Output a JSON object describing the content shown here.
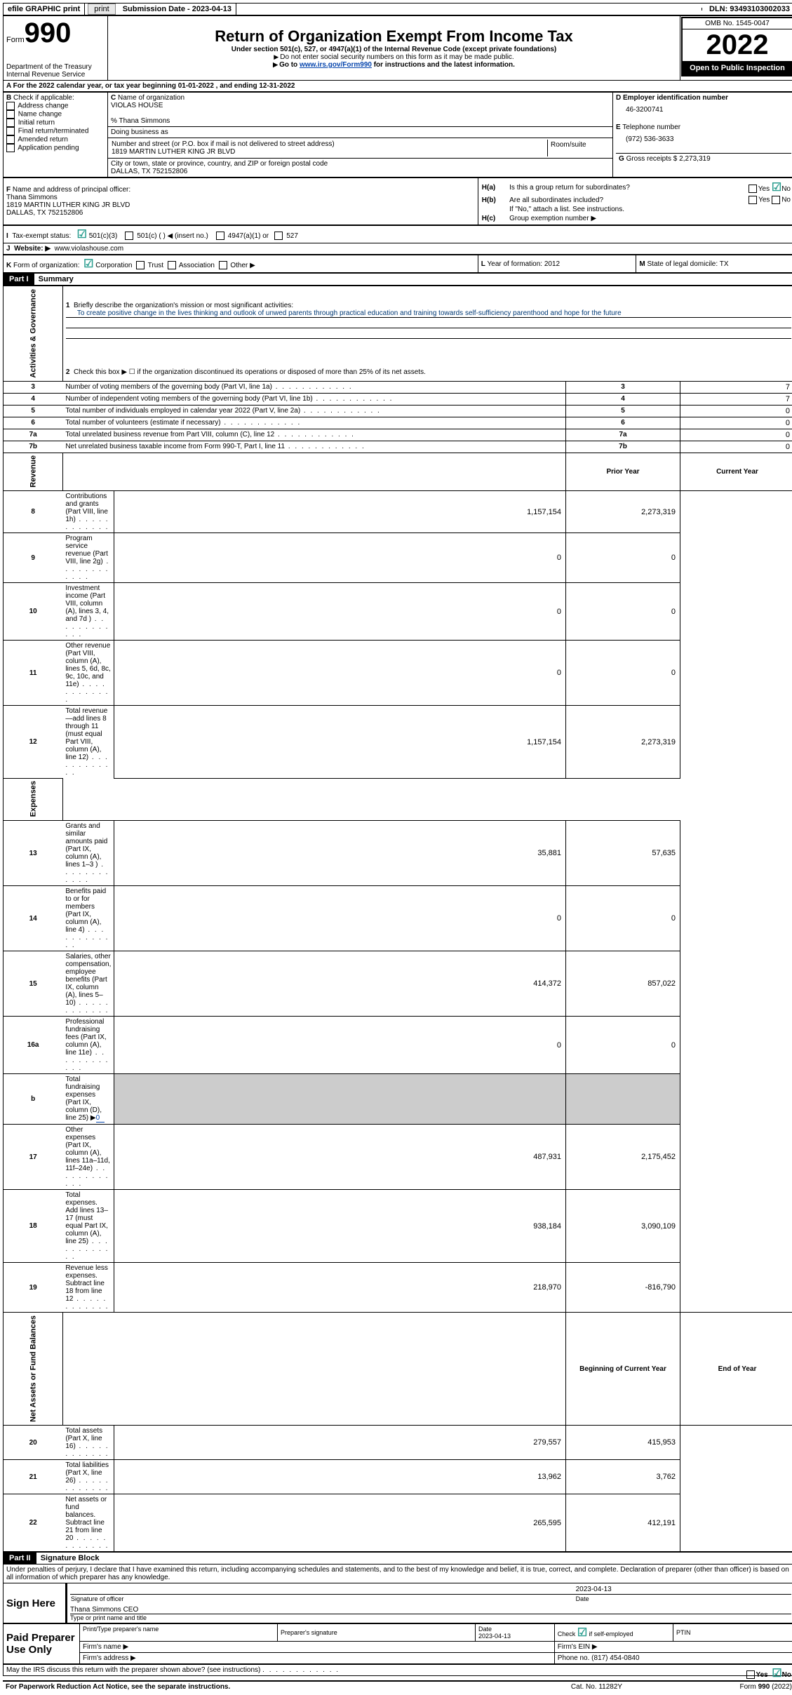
{
  "topbar": {
    "efile": "efile GRAPHIC print",
    "subdate_label": "Submission Date - ",
    "subdate": "2023-04-13",
    "dln_label": "DLN: ",
    "dln": "93493103002033"
  },
  "header": {
    "form_word": "Form",
    "form_no": "990",
    "dept": "Department of the Treasury\nInternal Revenue Service",
    "title": "Return of Organization Exempt From Income Tax",
    "sub1": "Under section 501(c), 527, or 4947(a)(1) of the Internal Revenue Code (except private foundations)",
    "sub2": "Do not enter social security numbers on this form as it may be made public.",
    "sub3_pre": "Go to ",
    "sub3_link": "www.irs.gov/Form990",
    "sub3_post": " for instructions and the latest information.",
    "omb": "OMB No. 1545-0047",
    "year": "2022",
    "open": "Open to Public Inspection"
  },
  "a_line": {
    "text_pre": "For the 2022 calendar year, or tax year beginning ",
    "begin": "01-01-2022",
    "mid": " , and ending ",
    "end": "12-31-2022"
  },
  "b": {
    "label": "Check if applicable:",
    "opts": [
      "Address change",
      "Name change",
      "Initial return",
      "Final return/terminated",
      "Amended return",
      "Application pending"
    ]
  },
  "c": {
    "name_lbl": "Name of organization",
    "name": "VIOLAS HOUSE",
    "care": "% Thana Simmons",
    "dba_lbl": "Doing business as",
    "addr_lbl": "Number and street (or P.O. box if mail is not delivered to street address)",
    "room_lbl": "Room/suite",
    "addr": "1819 MARTIN LUTHER KING JR BLVD",
    "city_lbl": "City or town, state or province, country, and ZIP or foreign postal code",
    "city": "DALLAS, TX  752152806"
  },
  "d": {
    "lbl": "Employer identification number",
    "val": "46-3200741"
  },
  "e": {
    "lbl": "Telephone number",
    "val": "(972) 536-3633"
  },
  "g": {
    "lbl": "Gross receipts $",
    "val": "2,273,319"
  },
  "f": {
    "lbl": "Name and address of principal officer:",
    "name": "Thana Simmons",
    "addr1": "1819 MARTIN LUTHER KING JR BLVD",
    "addr2": "DALLAS, TX  752152806"
  },
  "h": {
    "a": "Is this a group return for subordinates?",
    "b": "Are all subordinates included?",
    "b_note": "If \"No,\" attach a list. See instructions.",
    "c": "Group exemption number ▶"
  },
  "i": {
    "lbl": "Tax-exempt status:",
    "o1": "501(c)(3)",
    "o2": "501(c) (  ) ◀ (insert no.)",
    "o3": "4947(a)(1) or",
    "o4": "527"
  },
  "j": {
    "lbl": "Website: ▶",
    "val": "www.violashouse.com"
  },
  "k": {
    "lbl": "Form of organization:",
    "corp": "Corporation",
    "trust": "Trust",
    "assoc": "Association",
    "other": "Other ▶"
  },
  "l": {
    "lbl": "Year of formation: ",
    "val": "2012"
  },
  "m": {
    "lbl": "State of legal domicile: ",
    "val": "TX"
  },
  "p1": {
    "title": "Summary",
    "mission_lbl": "Briefly describe the organization's mission or most significant activities:",
    "mission": "To create positive change in the lives thinking and outlook of unwed parents through practical education and training towards self-sufficiency parenthood and hope for the future",
    "q2": "Check this box ▶ ☐ if the organization discontinued its operations or disposed of more than 25% of its net assets.",
    "side_ag": "Activities & Governance",
    "side_rev": "Revenue",
    "side_exp": "Expenses",
    "side_net": "Net Assets or Fund Balances",
    "rows_ag": [
      {
        "n": "3",
        "t": "Number of voting members of the governing body (Part VI, line 1a)",
        "v": "7"
      },
      {
        "n": "4",
        "t": "Number of independent voting members of the governing body (Part VI, line 1b)",
        "v": "7"
      },
      {
        "n": "5",
        "t": "Total number of individuals employed in calendar year 2022 (Part V, line 2a)",
        "v": "0"
      },
      {
        "n": "6",
        "t": "Total number of volunteers (estimate if necessary)",
        "v": "0"
      },
      {
        "n": "7a",
        "t": "Total unrelated business revenue from Part VIII, column (C), line 12",
        "v": "0"
      },
      {
        "n": "7b",
        "t": "Net unrelated business taxable income from Form 990-T, Part I, line 11",
        "v": "0"
      }
    ],
    "col_py": "Prior Year",
    "col_cy": "Current Year",
    "rows_rev": [
      {
        "n": "8",
        "t": "Contributions and grants (Part VIII, line 1h)",
        "py": "1,157,154",
        "cy": "2,273,319"
      },
      {
        "n": "9",
        "t": "Program service revenue (Part VIII, line 2g)",
        "py": "0",
        "cy": "0"
      },
      {
        "n": "10",
        "t": "Investment income (Part VIII, column (A), lines 3, 4, and 7d )",
        "py": "0",
        "cy": "0"
      },
      {
        "n": "11",
        "t": "Other revenue (Part VIII, column (A), lines 5, 6d, 8c, 9c, 10c, and 11e)",
        "py": "0",
        "cy": "0"
      },
      {
        "n": "12",
        "t": "Total revenue—add lines 8 through 11 (must equal Part VIII, column (A), line 12)",
        "py": "1,157,154",
        "cy": "2,273,319"
      }
    ],
    "rows_exp": [
      {
        "n": "13",
        "t": "Grants and similar amounts paid (Part IX, column (A), lines 1–3 )",
        "py": "35,881",
        "cy": "57,635"
      },
      {
        "n": "14",
        "t": "Benefits paid to or for members (Part IX, column (A), line 4)",
        "py": "0",
        "cy": "0"
      },
      {
        "n": "15",
        "t": "Salaries, other compensation, employee benefits (Part IX, column (A), lines 5–10)",
        "py": "414,372",
        "cy": "857,022"
      },
      {
        "n": "16a",
        "t": "Professional fundraising fees (Part IX, column (A), line 11e)",
        "py": "0",
        "cy": "0"
      }
    ],
    "row_b": {
      "n": "b",
      "t": "Total fundraising expenses (Part IX, column (D), line 25) ▶",
      "v": "0"
    },
    "rows_exp2": [
      {
        "n": "17",
        "t": "Other expenses (Part IX, column (A), lines 11a–11d, 11f–24e)",
        "py": "487,931",
        "cy": "2,175,452"
      },
      {
        "n": "18",
        "t": "Total expenses. Add lines 13–17 (must equal Part IX, column (A), line 25)",
        "py": "938,184",
        "cy": "3,090,109"
      },
      {
        "n": "19",
        "t": "Revenue less expenses. Subtract line 18 from line 12",
        "py": "218,970",
        "cy": "-816,790"
      }
    ],
    "col_boy": "Beginning of Current Year",
    "col_eoy": "End of Year",
    "rows_net": [
      {
        "n": "20",
        "t": "Total assets (Part X, line 16)",
        "py": "279,557",
        "cy": "415,953"
      },
      {
        "n": "21",
        "t": "Total liabilities (Part X, line 26)",
        "py": "13,962",
        "cy": "3,762"
      },
      {
        "n": "22",
        "t": "Net assets or fund balances. Subtract line 21 from line 20",
        "py": "265,595",
        "cy": "412,191"
      }
    ]
  },
  "p2": {
    "title": "Signature Block",
    "decl": "Under penalties of perjury, I declare that I have examined this return, including accompanying schedules and statements, and to the best of my knowledge and belief, it is true, correct, and complete. Declaration of preparer (other than officer) is based on all information of which preparer has any knowledge.",
    "sign_here": "Sign Here",
    "sig_officer": "Signature of officer",
    "sig_date": "2023-04-13",
    "date_lbl": "Date",
    "name_title": "Thana Simmons  CEO",
    "type_lbl": "Type or print name and title",
    "paid": "Paid Preparer Use Only",
    "prep_name_lbl": "Print/Type preparer's name",
    "prep_sig_lbl": "Preparer's signature",
    "prep_date_lbl": "Date",
    "prep_date": "2023-04-13",
    "check_self": "Check ☑ if self-employed",
    "ptin": "PTIN",
    "firm_name": "Firm's name  ▶",
    "firm_ein": "Firm's EIN ▶",
    "firm_addr": "Firm's address ▶",
    "phone_lbl": "Phone no. ",
    "phone": "(817) 454-0840",
    "discuss": "May the IRS discuss this return with the preparer shown above? (see instructions)",
    "yes": "Yes",
    "no": "No"
  },
  "footer": {
    "pra": "For Paperwork Reduction Act Notice, see the separate instructions.",
    "cat": "Cat. No. 11282Y",
    "form": "Form 990 (2022)"
  }
}
